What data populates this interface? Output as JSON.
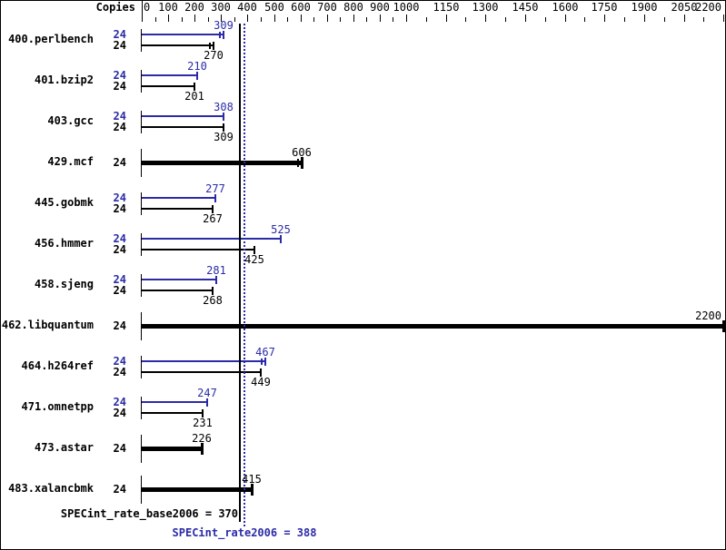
{
  "chart_data": {
    "type": "bar",
    "orientation": "horizontal",
    "copies_header": "Copies",
    "colors": {
      "peak": "#2b2ba8",
      "base": "#000000",
      "background": "#ffffff"
    },
    "axis": {
      "min": 0,
      "max": 2200,
      "position": "top",
      "tick_labels": [
        {
          "value": 0,
          "text": "0"
        },
        {
          "value": 100,
          "text": "100"
        },
        {
          "value": 200,
          "text": "200"
        },
        {
          "value": 300,
          "text": "300"
        },
        {
          "value": 400,
          "text": "400"
        },
        {
          "value": 500,
          "text": "500"
        },
        {
          "value": 600,
          "text": "600"
        },
        {
          "value": 700,
          "text": "700"
        },
        {
          "value": 800,
          "text": "800"
        },
        {
          "value": 900,
          "text": "900"
        },
        {
          "value": 1000,
          "text": "1000"
        },
        {
          "value": 1150,
          "text": "1150"
        },
        {
          "value": 1300,
          "text": "1300"
        },
        {
          "value": 1450,
          "text": "1450"
        },
        {
          "value": 1600,
          "text": "1600"
        },
        {
          "value": 1750,
          "text": "1750"
        },
        {
          "value": 1900,
          "text": "1900"
        },
        {
          "value": 2050,
          "text": "2050"
        },
        {
          "value": 2200,
          "text": "2200"
        }
      ],
      "minor_ticks": [
        50,
        150,
        250,
        350,
        450,
        550,
        650,
        750,
        850,
        950,
        1075,
        1225,
        1375,
        1525,
        1675,
        1825,
        1975,
        2125
      ]
    },
    "benchmarks": [
      {
        "name": "400.perlbench",
        "copies": 24,
        "bars": [
          {
            "kind": "peak",
            "value": 309,
            "double_tick": true
          },
          {
            "kind": "base",
            "value": 270,
            "double_tick": true
          }
        ]
      },
      {
        "name": "401.bzip2",
        "copies": 24,
        "bars": [
          {
            "kind": "peak",
            "value": 210
          },
          {
            "kind": "base",
            "value": 201
          }
        ]
      },
      {
        "name": "403.gcc",
        "copies": 24,
        "bars": [
          {
            "kind": "peak",
            "value": 308
          },
          {
            "kind": "base",
            "value": 309
          }
        ]
      },
      {
        "name": "429.mcf",
        "copies": 24,
        "bars": [
          {
            "kind": "single",
            "value": 606,
            "double_tick": true
          }
        ]
      },
      {
        "name": "445.gobmk",
        "copies": 24,
        "bars": [
          {
            "kind": "peak",
            "value": 277
          },
          {
            "kind": "base",
            "value": 267
          }
        ]
      },
      {
        "name": "456.hmmer",
        "copies": 24,
        "bars": [
          {
            "kind": "peak",
            "value": 525
          },
          {
            "kind": "base",
            "value": 425
          }
        ]
      },
      {
        "name": "458.sjeng",
        "copies": 24,
        "bars": [
          {
            "kind": "peak",
            "value": 281
          },
          {
            "kind": "base",
            "value": 268
          }
        ]
      },
      {
        "name": "462.libquantum",
        "copies": 24,
        "bars": [
          {
            "kind": "single",
            "value": 2200
          }
        ]
      },
      {
        "name": "464.h264ref",
        "copies": 24,
        "bars": [
          {
            "kind": "peak",
            "value": 467,
            "double_tick": true
          },
          {
            "kind": "base",
            "value": 449
          }
        ]
      },
      {
        "name": "471.omnetpp",
        "copies": 24,
        "bars": [
          {
            "kind": "peak",
            "value": 247
          },
          {
            "kind": "base",
            "value": 231
          }
        ]
      },
      {
        "name": "473.astar",
        "copies": 24,
        "bars": [
          {
            "kind": "single",
            "value": 226
          }
        ]
      },
      {
        "name": "483.xalancbmk",
        "copies": 24,
        "bars": [
          {
            "kind": "single",
            "value": 415
          }
        ]
      }
    ],
    "reference_lines": [
      {
        "id": "base",
        "label": "SPECint_rate_base2006 = 370",
        "value": 370,
        "style": "solid",
        "color": "#000000"
      },
      {
        "id": "peak",
        "label": "SPECint_rate2006 = 388",
        "value": 388,
        "style": "dotted",
        "color": "#2b2ba8"
      }
    ]
  }
}
